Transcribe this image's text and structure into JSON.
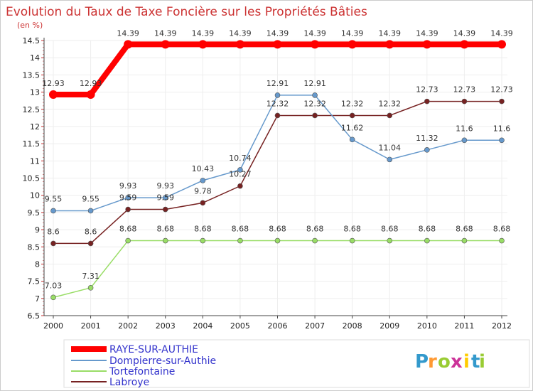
{
  "chart_data": {
    "type": "line",
    "title": "Evolution du Taux de Taxe Foncière sur les Propriétés Bâties",
    "ylabel": "(en %)",
    "xlabel": "",
    "categories": [
      "2000",
      "2001",
      "2002",
      "2003",
      "2004",
      "2005",
      "2006",
      "2007",
      "2008",
      "2009",
      "2010",
      "2011",
      "2012"
    ],
    "ylim": [
      6.5,
      14.5
    ],
    "yticks": [
      "6.5",
      "7",
      "7.5",
      "8",
      "8.5",
      "9",
      "9.5",
      "10",
      "10.5",
      "11",
      "11.5",
      "12",
      "12.5",
      "13",
      "13.5",
      "14",
      "14.5"
    ],
    "legend_position": "bottom-left",
    "series": [
      {
        "name": "RAYE-SUR-AUTHIE",
        "color": "#ff0000",
        "values": [
          12.93,
          12.93,
          14.39,
          14.39,
          14.39,
          14.39,
          14.39,
          14.39,
          14.39,
          14.39,
          14.39,
          14.39,
          14.39
        ]
      },
      {
        "name": "Dompierre-sur-Authie",
        "color": "#6699cc",
        "values": [
          9.55,
          9.55,
          9.93,
          9.93,
          10.43,
          10.74,
          12.91,
          12.91,
          11.62,
          11.04,
          11.32,
          11.6,
          11.6
        ]
      },
      {
        "name": "Tortefontaine",
        "color": "#99dd66",
        "values": [
          7.03,
          7.31,
          8.68,
          8.68,
          8.68,
          8.68,
          8.68,
          8.68,
          8.68,
          8.68,
          8.68,
          8.68,
          8.68
        ]
      },
      {
        "name": "Labroye",
        "color": "#772222",
        "values": [
          8.6,
          8.6,
          9.59,
          9.59,
          9.78,
          10.27,
          12.32,
          12.32,
          12.32,
          12.32,
          12.73,
          12.73,
          12.73
        ]
      }
    ],
    "data_labels": [
      [
        "12.93",
        "12.93",
        "14.39",
        "14.39",
        "14.39",
        "14.39",
        "14.39",
        "14.39",
        "14.39",
        "14.39",
        "14.39",
        "14.39",
        "14.39"
      ],
      [
        "9.55",
        "9.55",
        "9.93",
        "9.93",
        "10.43",
        "10.74",
        "12.91",
        "12.91",
        "11.62",
        "11.04",
        "11.32",
        "11.6",
        "11.6"
      ],
      [
        "7.03",
        "7.31",
        "8.68",
        "8.68",
        "8.68",
        "8.68",
        "8.68",
        "8.68",
        "8.68",
        "8.68",
        "8.68",
        "8.68",
        "8.68"
      ],
      [
        "8.6",
        "8.6",
        "9.59",
        "9.59",
        "9.78",
        "10.27",
        "12.32",
        "12.32",
        "12.32",
        "12.32",
        "12.73",
        "12.73",
        "12.73"
      ]
    ]
  },
  "logo": {
    "letters": [
      "P",
      "r",
      "o",
      "x",
      "i",
      "t",
      "i"
    ],
    "colors": [
      "#3399cc",
      "#ff9933",
      "#99cc33",
      "#cc3399",
      "#ffcc00",
      "#3399cc",
      "#99cc33"
    ]
  }
}
